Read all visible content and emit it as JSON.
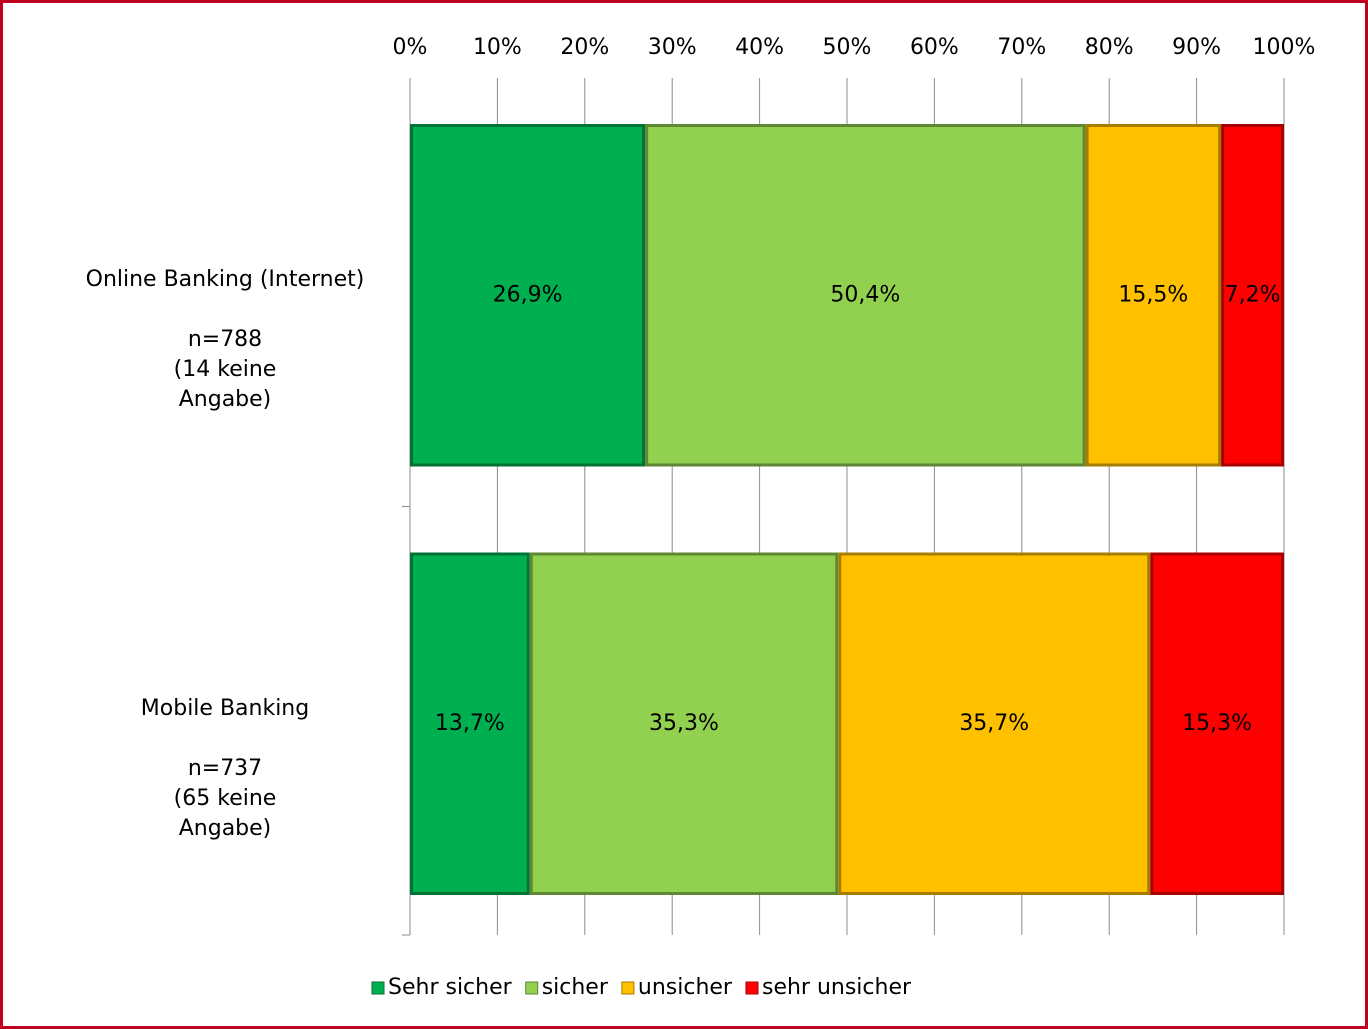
{
  "chart_data": {
    "type": "stacked_bar_horizontal",
    "categories": [
      "Online Banking (Internet)\n\nn=788\n(14 keine\nAngabe)",
      "Mobile Banking\n\nn=737\n(65 keine\nAngabe)"
    ],
    "series": [
      {
        "name": "Sehr sicher",
        "color": "#00b050",
        "values": [
          26.9,
          13.7
        ],
        "value_labels": [
          "26,9%",
          "13,7%"
        ]
      },
      {
        "name": "sicher",
        "color": "#92d050",
        "values": [
          50.4,
          35.3
        ],
        "value_labels": [
          "50,4%",
          "35,3%"
        ]
      },
      {
        "name": "unsicher",
        "color": "#ffc000",
        "values": [
          15.5,
          35.7
        ],
        "value_labels": [
          "15,5%",
          "35,7%"
        ]
      },
      {
        "name": "sehr unsicher",
        "color": "#ff0000",
        "values": [
          7.2,
          15.3
        ],
        "value_labels": [
          "7,2%",
          "15,3%"
        ]
      }
    ],
    "xlim": [
      0,
      100
    ],
    "xticks": [
      {
        "value": 0,
        "label": "0%"
      },
      {
        "value": 10,
        "label": "10%"
      },
      {
        "value": 20,
        "label": "20%"
      },
      {
        "value": 30,
        "label": "30%"
      },
      {
        "value": 40,
        "label": "40%"
      },
      {
        "value": 50,
        "label": "50%"
      },
      {
        "value": 60,
        "label": "60%"
      },
      {
        "value": 70,
        "label": "70%"
      },
      {
        "value": 80,
        "label": "80%"
      },
      {
        "value": 90,
        "label": "90%"
      },
      {
        "value": 100,
        "label": "100%"
      }
    ],
    "grid": true,
    "legend": "bottom"
  }
}
